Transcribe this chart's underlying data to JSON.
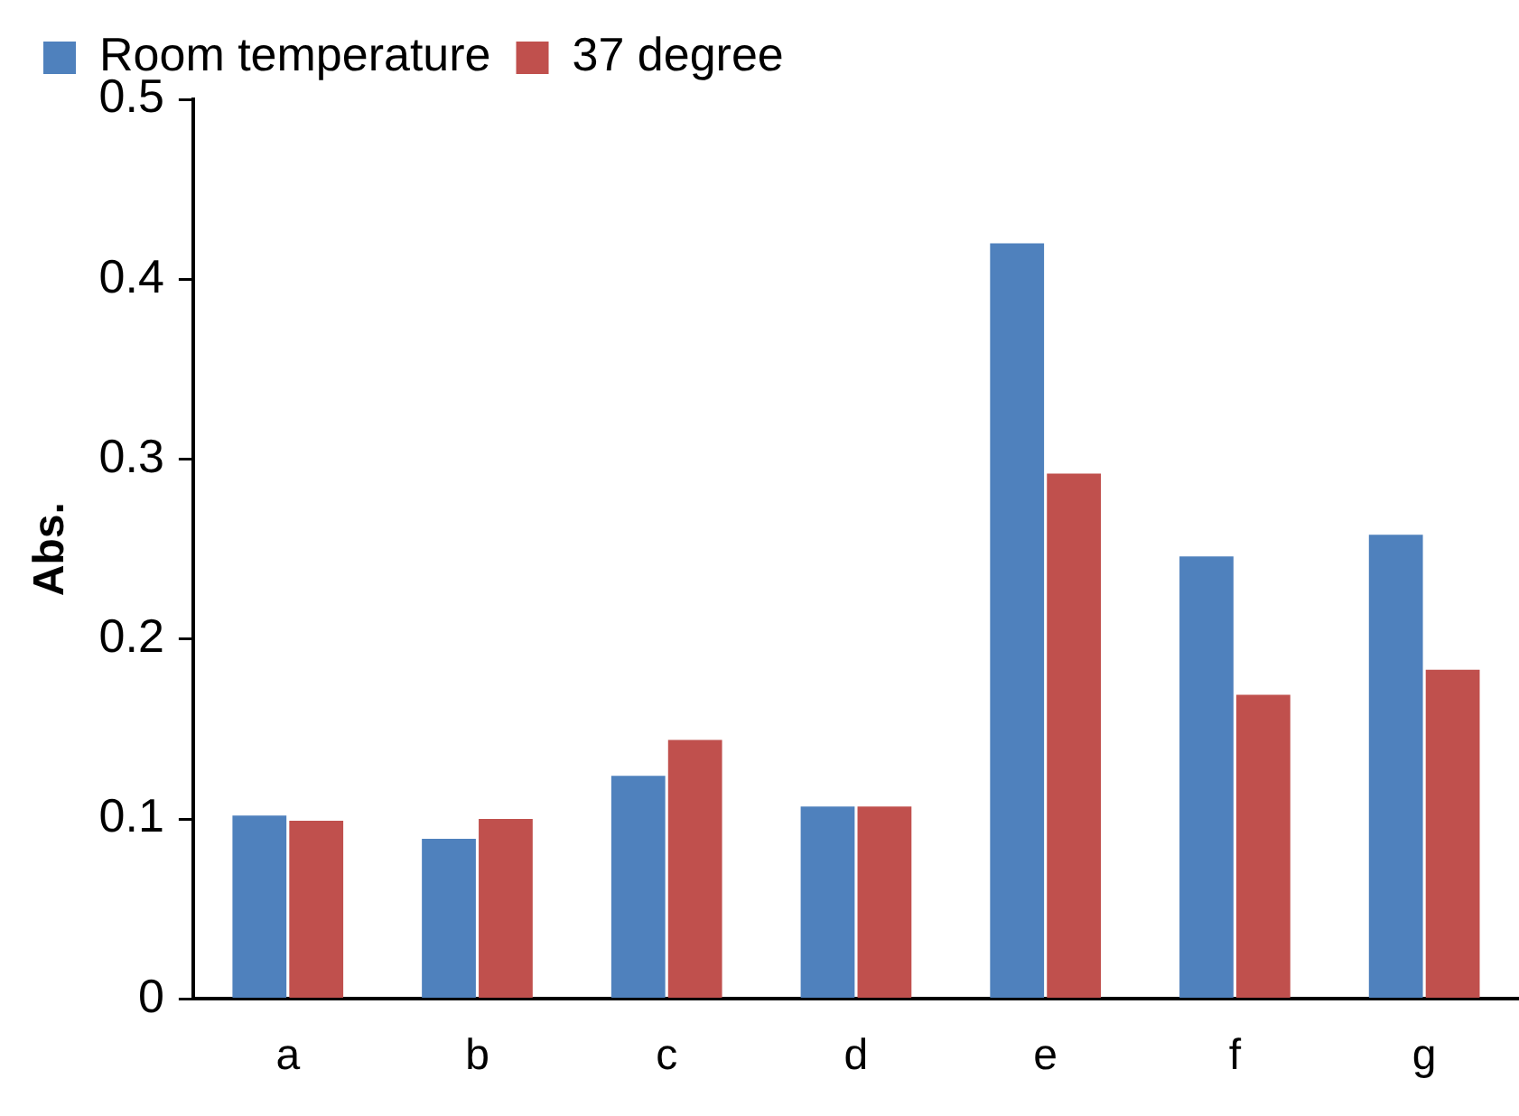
{
  "chart_data": {
    "type": "bar",
    "ylabel": "Abs.",
    "categories": [
      "a",
      "b",
      "c",
      "d",
      "e",
      "f",
      "g"
    ],
    "series": [
      {
        "name": "Room temperature",
        "color": "#4f81bd",
        "values": [
          0.102,
          0.089,
          0.124,
          0.107,
          0.42,
          0.246,
          0.258
        ]
      },
      {
        "name": "37 degree",
        "color": "#c0504d",
        "values": [
          0.099,
          0.1,
          0.144,
          0.107,
          0.292,
          0.169,
          0.183
        ]
      }
    ],
    "ylim": [
      0,
      0.5
    ],
    "yticks": [
      0,
      0.1,
      0.2,
      0.3,
      0.4,
      0.5
    ],
    "grid": false,
    "legend": "top"
  }
}
